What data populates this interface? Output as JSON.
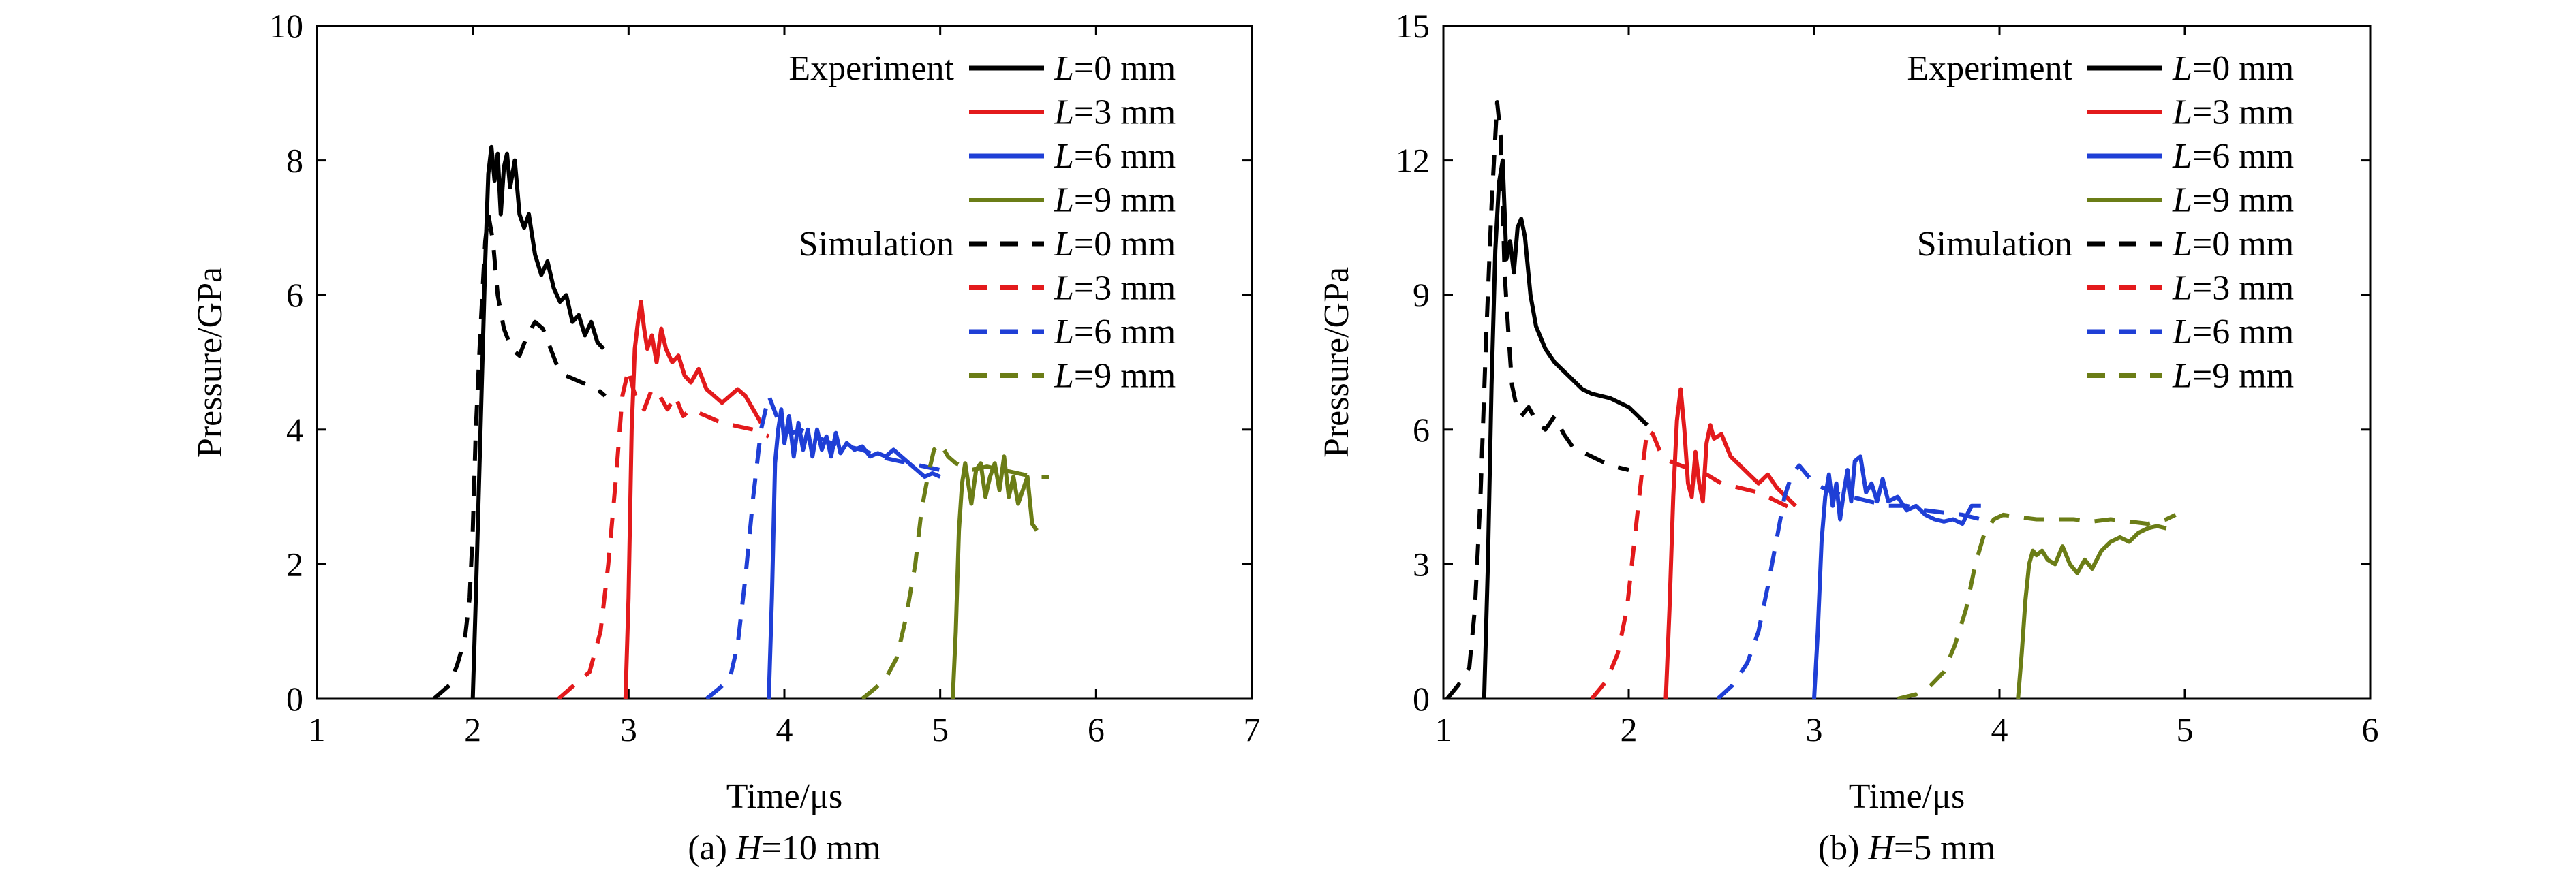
{
  "chart_data": [
    {
      "type": "line",
      "panel": "a",
      "caption_prefix": "(a) ",
      "caption_var": "H",
      "caption_rest": "=10 mm",
      "xlabel": "Time/μs",
      "ylabel": "Pressure/GPa",
      "xlim": [
        1,
        7
      ],
      "ylim": [
        0,
        10
      ],
      "xticks": [
        1,
        2,
        3,
        4,
        5,
        6,
        7
      ],
      "yticks": [
        0,
        2,
        4,
        6,
        8,
        10
      ],
      "legend_groups": [
        {
          "label": "Experiment",
          "style": "solid"
        },
        {
          "label": "Simulation",
          "style": "dashed"
        }
      ],
      "series": [
        {
          "name": "L=0 mm",
          "group": "Experiment",
          "color": "#000000",
          "dash": false,
          "x": [
            2.0,
            2.02,
            2.05,
            2.08,
            2.1,
            2.12,
            2.14,
            2.16,
            2.18,
            2.2,
            2.22,
            2.24,
            2.27,
            2.3,
            2.33,
            2.36,
            2.4,
            2.44,
            2.48,
            2.52,
            2.56,
            2.6,
            2.64,
            2.68,
            2.72,
            2.76,
            2.8,
            2.84
          ],
          "y": [
            0.0,
            1.5,
            4.0,
            6.5,
            7.8,
            8.2,
            7.7,
            8.1,
            7.2,
            7.9,
            8.1,
            7.6,
            8.0,
            7.2,
            7.0,
            7.2,
            6.6,
            6.3,
            6.5,
            6.1,
            5.9,
            6.0,
            5.6,
            5.7,
            5.4,
            5.6,
            5.3,
            5.2
          ]
        },
        {
          "name": "L=3 mm",
          "group": "Experiment",
          "color": "#e31a1c",
          "dash": false,
          "x": [
            2.98,
            3.0,
            3.02,
            3.04,
            3.06,
            3.08,
            3.1,
            3.12,
            3.15,
            3.18,
            3.21,
            3.24,
            3.28,
            3.32,
            3.36,
            3.4,
            3.45,
            3.5,
            3.55,
            3.6,
            3.65,
            3.7,
            3.75,
            3.8,
            3.85
          ],
          "y": [
            0.0,
            1.5,
            4.0,
            5.2,
            5.6,
            5.9,
            5.5,
            5.2,
            5.4,
            5.0,
            5.5,
            5.2,
            5.0,
            5.1,
            4.8,
            4.7,
            4.9,
            4.6,
            4.5,
            4.4,
            4.5,
            4.6,
            4.5,
            4.3,
            4.1
          ]
        },
        {
          "name": "L=6 mm",
          "group": "Experiment",
          "color": "#1f3fd6",
          "dash": false,
          "x": [
            3.9,
            3.92,
            3.94,
            3.96,
            3.98,
            4.0,
            4.03,
            4.06,
            4.09,
            4.12,
            4.15,
            4.18,
            4.21,
            4.24,
            4.27,
            4.3,
            4.33,
            4.36,
            4.4,
            4.45,
            4.5,
            4.55,
            4.6,
            4.65,
            4.7,
            4.75,
            4.8,
            4.85,
            4.9,
            4.95,
            5.0
          ],
          "y": [
            0.0,
            1.5,
            3.5,
            4.0,
            4.3,
            3.8,
            4.2,
            3.6,
            4.1,
            3.7,
            4.0,
            3.6,
            4.0,
            3.7,
            3.9,
            3.6,
            3.95,
            3.65,
            3.8,
            3.7,
            3.75,
            3.6,
            3.65,
            3.6,
            3.7,
            3.6,
            3.5,
            3.4,
            3.3,
            3.35,
            3.3
          ]
        },
        {
          "name": "L=9 mm",
          "group": "Experiment",
          "color": "#6b7d16",
          "dash": false,
          "x": [
            5.08,
            5.1,
            5.12,
            5.14,
            5.16,
            5.18,
            5.2,
            5.23,
            5.26,
            5.29,
            5.32,
            5.35,
            5.38,
            5.41,
            5.44,
            5.47,
            5.5,
            5.53,
            5.56,
            5.59,
            5.62
          ],
          "y": [
            0.0,
            1.0,
            2.5,
            3.2,
            3.5,
            3.2,
            2.9,
            3.4,
            3.5,
            3.0,
            3.3,
            3.5,
            3.1,
            3.6,
            3.0,
            3.3,
            2.9,
            3.1,
            3.3,
            2.6,
            2.5
          ]
        },
        {
          "name": "L=0 mm",
          "group": "Simulation",
          "color": "#000000",
          "dash": true,
          "x": [
            1.75,
            1.85,
            1.9,
            1.95,
            1.98,
            2.0,
            2.02,
            2.05,
            2.08,
            2.1,
            2.13,
            2.16,
            2.2,
            2.25,
            2.3,
            2.35,
            2.4,
            2.45,
            2.5,
            2.55,
            2.6,
            2.7,
            2.8,
            2.85
          ],
          "y": [
            0.0,
            0.2,
            0.5,
            0.9,
            1.5,
            2.5,
            4.0,
            5.5,
            6.8,
            7.2,
            6.8,
            6.0,
            5.5,
            5.2,
            5.1,
            5.4,
            5.6,
            5.5,
            5.2,
            4.9,
            4.8,
            4.7,
            4.6,
            4.5
          ]
        },
        {
          "name": "L=3 mm",
          "group": "Simulation",
          "color": "#e31a1c",
          "dash": true,
          "x": [
            2.55,
            2.65,
            2.75,
            2.82,
            2.87,
            2.92,
            2.96,
            3.0,
            3.03,
            3.06,
            3.1,
            3.15,
            3.2,
            3.25,
            3.3,
            3.35,
            3.4,
            3.5,
            3.6,
            3.7,
            3.8,
            3.9
          ],
          "y": [
            0.0,
            0.2,
            0.4,
            1.0,
            2.0,
            3.3,
            4.5,
            4.9,
            4.6,
            4.4,
            4.3,
            4.6,
            4.5,
            4.3,
            4.5,
            4.2,
            4.3,
            4.2,
            4.1,
            4.05,
            4.0,
            3.9
          ]
        },
        {
          "name": "L=6 mm",
          "group": "Simulation",
          "color": "#1f3fd6",
          "dash": true,
          "x": [
            3.5,
            3.58,
            3.65,
            3.7,
            3.75,
            3.8,
            3.85,
            3.9,
            3.95,
            4.0,
            4.05,
            4.1,
            4.2,
            4.3,
            4.4,
            4.5,
            4.6,
            4.7,
            4.8,
            4.9,
            5.0
          ],
          "y": [
            0.0,
            0.15,
            0.3,
            0.8,
            1.8,
            3.0,
            4.0,
            4.5,
            4.2,
            4.0,
            3.95,
            4.0,
            3.9,
            3.8,
            3.75,
            3.7,
            3.6,
            3.55,
            3.5,
            3.45,
            3.4
          ]
        },
        {
          "name": "L=9 mm",
          "group": "Simulation",
          "color": "#6b7d16",
          "dash": true,
          "x": [
            4.5,
            4.58,
            4.65,
            4.72,
            4.78,
            4.84,
            4.88,
            4.92,
            4.96,
            5.0,
            5.05,
            5.1,
            5.2,
            5.3,
            5.4,
            5.5,
            5.6,
            5.7
          ],
          "y": [
            0.0,
            0.15,
            0.3,
            0.6,
            1.2,
            2.0,
            2.8,
            3.3,
            3.7,
            3.8,
            3.6,
            3.5,
            3.4,
            3.45,
            3.4,
            3.35,
            3.3,
            3.3
          ]
        }
      ]
    },
    {
      "type": "line",
      "panel": "b",
      "caption_prefix": "(b) ",
      "caption_var": "H",
      "caption_rest": "=5 mm",
      "xlabel": "Time/μs",
      "ylabel": "Pressure/GPa",
      "xlim": [
        1,
        6
      ],
      "ylim": [
        0,
        15
      ],
      "xticks": [
        1,
        2,
        3,
        4,
        5,
        6
      ],
      "yticks": [
        0,
        3,
        6,
        9,
        12,
        15
      ],
      "legend_groups": [
        {
          "label": "Experiment",
          "style": "solid"
        },
        {
          "label": "Simulation",
          "style": "dashed"
        }
      ],
      "series": [
        {
          "name": "L=0 mm",
          "group": "Experiment",
          "color": "#000000",
          "dash": false,
          "x": [
            1.22,
            1.24,
            1.26,
            1.28,
            1.3,
            1.32,
            1.34,
            1.36,
            1.38,
            1.4,
            1.42,
            1.44,
            1.47,
            1.5,
            1.55,
            1.6,
            1.65,
            1.7,
            1.75,
            1.8,
            1.85,
            1.9,
            1.95,
            2.0,
            2.05,
            2.1
          ],
          "y": [
            0.0,
            3.0,
            7.0,
            10.0,
            11.5,
            12.0,
            9.8,
            10.2,
            9.5,
            10.5,
            10.7,
            10.3,
            9.0,
            8.3,
            7.8,
            7.5,
            7.3,
            7.1,
            6.9,
            6.8,
            6.75,
            6.7,
            6.6,
            6.5,
            6.3,
            6.1
          ]
        },
        {
          "name": "L=3 mm",
          "group": "Experiment",
          "color": "#e31a1c",
          "dash": false,
          "x": [
            2.2,
            2.22,
            2.24,
            2.26,
            2.28,
            2.3,
            2.32,
            2.34,
            2.36,
            2.38,
            2.4,
            2.42,
            2.44,
            2.46,
            2.5,
            2.55,
            2.6,
            2.65,
            2.7,
            2.75,
            2.8,
            2.85,
            2.9
          ],
          "y": [
            0.0,
            2.0,
            4.5,
            6.2,
            6.9,
            6.0,
            4.8,
            4.5,
            5.5,
            4.8,
            4.4,
            5.7,
            6.1,
            5.8,
            5.9,
            5.4,
            5.2,
            5.0,
            4.8,
            5.0,
            4.7,
            4.5,
            4.3
          ]
        },
        {
          "name": "L=6 mm",
          "group": "Experiment",
          "color": "#1f3fd6",
          "dash": false,
          "x": [
            3.0,
            3.02,
            3.04,
            3.06,
            3.08,
            3.1,
            3.12,
            3.14,
            3.16,
            3.18,
            3.2,
            3.22,
            3.25,
            3.28,
            3.31,
            3.34,
            3.37,
            3.4,
            3.45,
            3.5,
            3.55,
            3.6,
            3.65,
            3.7,
            3.75,
            3.8,
            3.85,
            3.9
          ],
          "y": [
            0.0,
            1.5,
            3.5,
            4.5,
            5.0,
            4.3,
            4.8,
            4.0,
            4.6,
            5.1,
            4.4,
            5.3,
            5.4,
            4.6,
            4.8,
            4.4,
            4.9,
            4.4,
            4.5,
            4.2,
            4.3,
            4.1,
            4.0,
            3.95,
            4.0,
            3.9,
            4.3,
            4.3
          ]
        },
        {
          "name": "L=9 mm",
          "group": "Experiment",
          "color": "#6b7d16",
          "dash": false,
          "x": [
            4.1,
            4.12,
            4.14,
            4.16,
            4.18,
            4.2,
            4.23,
            4.26,
            4.3,
            4.34,
            4.38,
            4.42,
            4.46,
            4.5,
            4.55,
            4.6,
            4.65,
            4.7,
            4.75,
            4.8,
            4.85,
            4.9
          ],
          "y": [
            0.0,
            1.0,
            2.2,
            3.0,
            3.3,
            3.2,
            3.3,
            3.1,
            3.0,
            3.4,
            3.0,
            2.8,
            3.1,
            2.9,
            3.3,
            3.5,
            3.6,
            3.5,
            3.7,
            3.8,
            3.85,
            3.8
          ]
        },
        {
          "name": "L=0 mm",
          "group": "Simulation",
          "color": "#000000",
          "dash": true,
          "x": [
            1.02,
            1.08,
            1.14,
            1.17,
            1.2,
            1.23,
            1.26,
            1.29,
            1.31,
            1.33,
            1.35,
            1.37,
            1.39,
            1.42,
            1.46,
            1.5,
            1.55,
            1.6,
            1.65,
            1.7,
            1.8,
            1.9,
            2.0
          ],
          "y": [
            0.0,
            0.3,
            0.7,
            2.0,
            4.5,
            8.0,
            11.0,
            13.3,
            12.5,
            9.5,
            8.2,
            7.0,
            6.6,
            6.3,
            6.5,
            6.2,
            6.0,
            6.3,
            5.9,
            5.6,
            5.4,
            5.2,
            5.1
          ]
        },
        {
          "name": "L=3 mm",
          "group": "Simulation",
          "color": "#e31a1c",
          "dash": true,
          "x": [
            1.8,
            1.88,
            1.94,
            1.99,
            2.03,
            2.07,
            2.1,
            2.13,
            2.17,
            2.22,
            2.28,
            2.35,
            2.42,
            2.5,
            2.6,
            2.7,
            2.8,
            2.9
          ],
          "y": [
            0.0,
            0.4,
            1.0,
            2.0,
            3.5,
            5.0,
            6.0,
            5.9,
            5.5,
            5.3,
            5.2,
            5.1,
            5.0,
            4.8,
            4.7,
            4.6,
            4.4,
            4.2
          ]
        },
        {
          "name": "L=6 mm",
          "group": "Simulation",
          "color": "#1f3fd6",
          "dash": true,
          "x": [
            2.48,
            2.56,
            2.64,
            2.7,
            2.75,
            2.8,
            2.84,
            2.88,
            2.92,
            2.96,
            3.0,
            3.1,
            3.2,
            3.3,
            3.4,
            3.5,
            3.6,
            3.7,
            3.8,
            3.9
          ],
          "y": [
            0.0,
            0.3,
            0.8,
            1.5,
            2.5,
            3.6,
            4.5,
            5.0,
            5.2,
            5.0,
            4.8,
            4.6,
            4.5,
            4.4,
            4.3,
            4.3,
            4.2,
            4.15,
            4.1,
            4.0
          ]
        },
        {
          "name": "L=9 mm",
          "group": "Simulation",
          "color": "#6b7d16",
          "dash": true,
          "x": [
            3.45,
            3.55,
            3.63,
            3.7,
            3.76,
            3.82,
            3.87,
            3.92,
            3.97,
            4.02,
            4.1,
            4.2,
            4.3,
            4.4,
            4.5,
            4.6,
            4.7,
            4.8,
            4.9,
            4.95
          ],
          "y": [
            0.0,
            0.1,
            0.3,
            0.6,
            1.2,
            2.0,
            3.0,
            3.7,
            4.0,
            4.1,
            4.05,
            4.0,
            4.0,
            4.0,
            3.95,
            4.0,
            3.95,
            3.9,
            4.0,
            4.1
          ]
        }
      ]
    }
  ]
}
